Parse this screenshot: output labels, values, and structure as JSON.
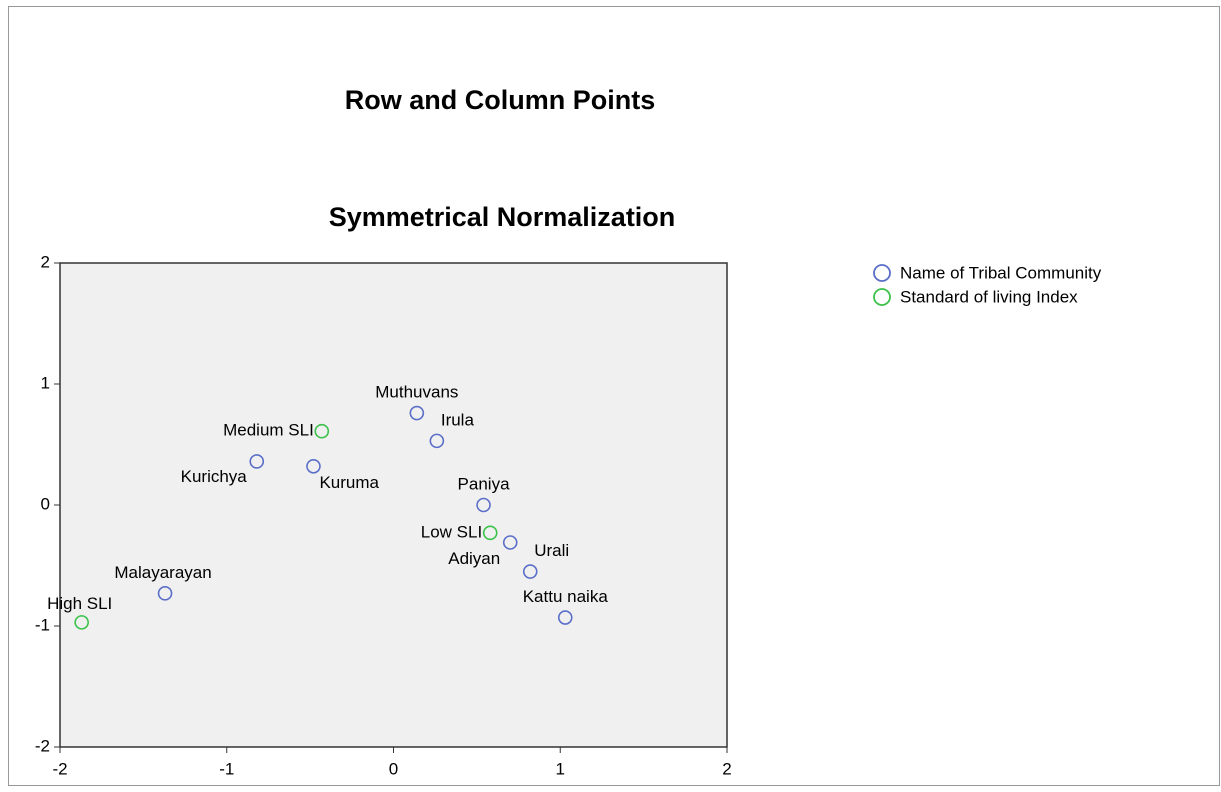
{
  "chart_data": {
    "type": "scatter",
    "title": "Row and Column Points",
    "subtitle": "Symmetrical Normalization",
    "xlim": [
      -2,
      2
    ],
    "xticks": [
      -2,
      -1,
      0,
      1,
      2
    ],
    "ylim": [
      -2,
      2
    ],
    "yticks": [
      -2,
      -1,
      0,
      1,
      2
    ],
    "legend": "right",
    "series": [
      {
        "name": "Name of Tribal Community",
        "color": "#5b6fc8",
        "labels": [
          "Muthuvans",
          "Irula",
          "Kurichya",
          "Kuruma",
          "Paniya",
          "Adiyan",
          "Urali",
          "Malayarayan",
          "Kattu naika"
        ],
        "x": [
          0.14,
          0.26,
          -0.82,
          -0.48,
          0.54,
          0.7,
          0.82,
          -1.37,
          1.03
        ],
        "values": [
          0.76,
          0.53,
          0.36,
          0.32,
          0.0,
          -0.31,
          -0.55,
          -0.73,
          -0.93
        ]
      },
      {
        "name": "Standard of living Index",
        "color": "#3cc24a",
        "labels": [
          "Medium SLI",
          "Low SLI",
          "High SLI"
        ],
        "x": [
          -0.43,
          0.58,
          -1.87
        ],
        "values": [
          0.61,
          -0.23,
          -0.97
        ]
      }
    ]
  }
}
